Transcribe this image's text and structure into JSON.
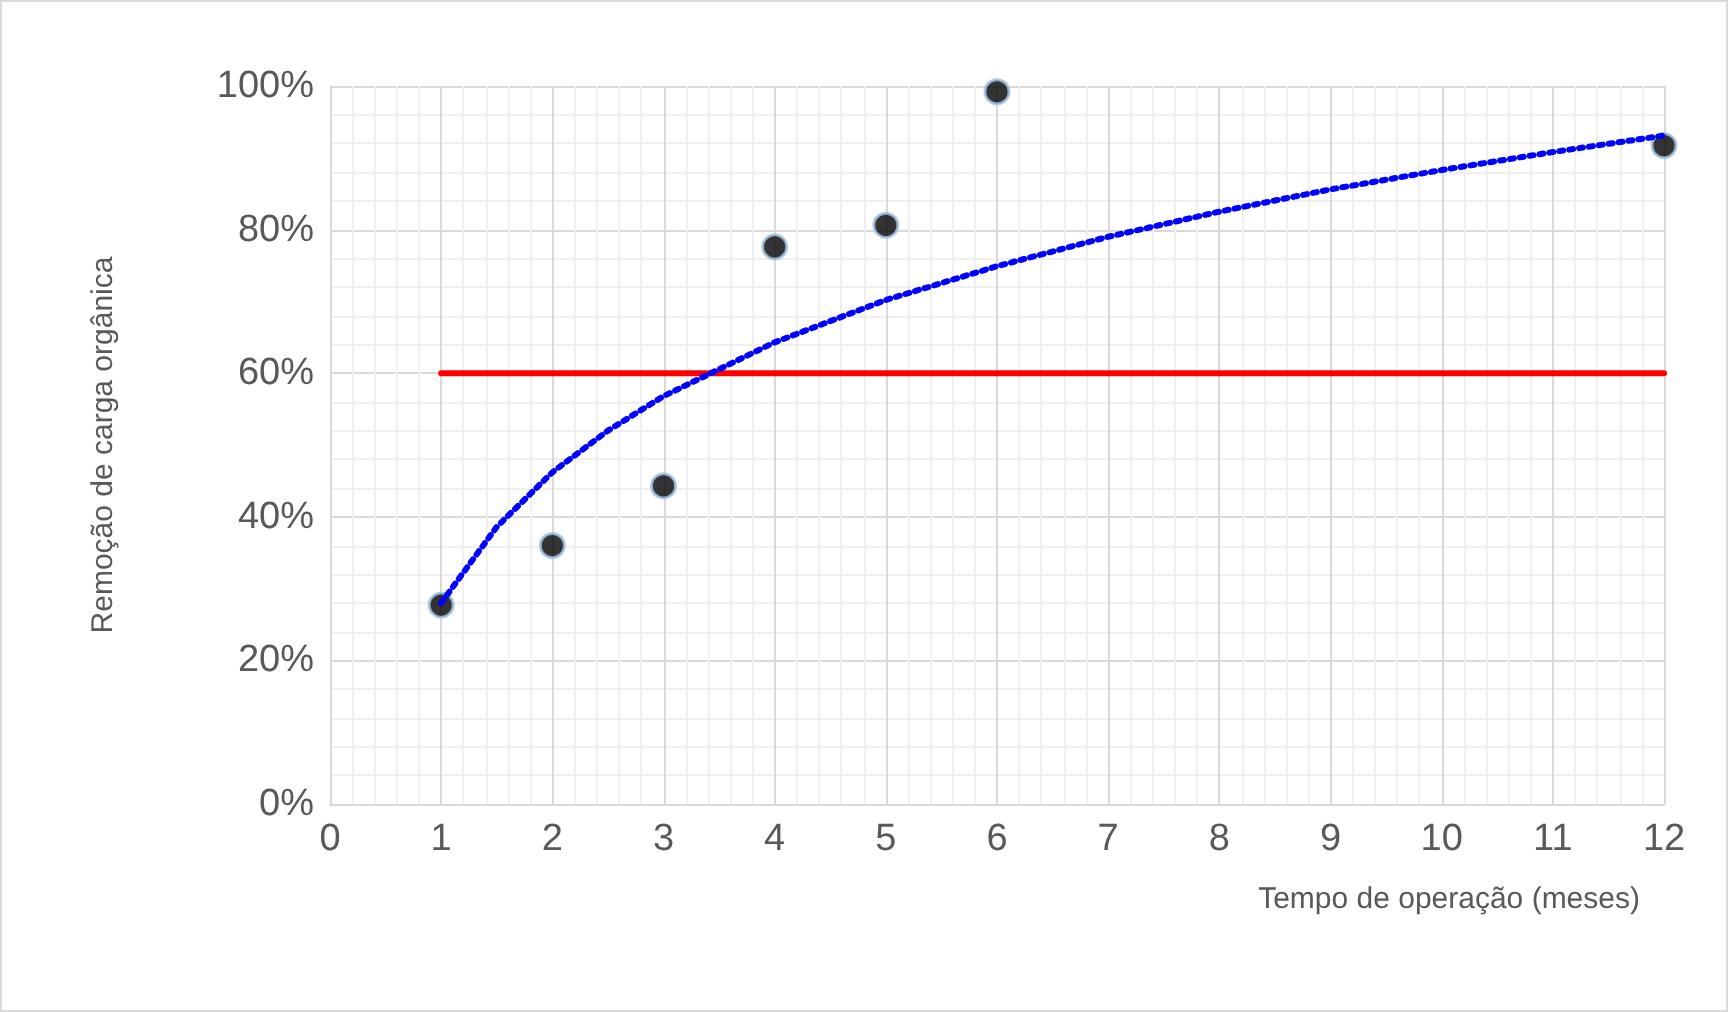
{
  "chart_data": {
    "type": "scatter",
    "xlabel": "Tempo de operação (meses)",
    "ylabel": "Remoção de carga orgânica",
    "xlim": [
      0,
      12
    ],
    "xticks": [
      0,
      1,
      2,
      3,
      4,
      5,
      6,
      7,
      8,
      9,
      10,
      11,
      12
    ],
    "ylim": [
      0,
      100
    ],
    "yticks": [
      {
        "value": 0,
        "label": "0%"
      },
      {
        "value": 20,
        "label": "20%"
      },
      {
        "value": 40,
        "label": "40%"
      },
      {
        "value": 60,
        "label": "60%"
      },
      {
        "value": 80,
        "label": "80%"
      },
      {
        "value": 100,
        "label": "100%"
      }
    ],
    "grid": true,
    "marker": "circle",
    "series": [
      {
        "type": "line",
        "color": "#ff0000",
        "line_style": "solid",
        "marker": "none",
        "x": [
          1,
          12
        ],
        "values": [
          60,
          60
        ]
      },
      {
        "type": "line",
        "color": "#0000ff",
        "line_style": "dotted",
        "marker": "none",
        "x": [
          1,
          1.5,
          2,
          2.5,
          3,
          4,
          5,
          6,
          7,
          8,
          9,
          10,
          11,
          12
        ],
        "values": [
          28,
          38.6,
          46.2,
          52,
          56.8,
          64.3,
          70.2,
          74.9,
          79,
          82.5,
          85.6,
          88.3,
          90.8,
          93.1
        ]
      },
      {
        "color": "#000000",
        "x": [
          1,
          2,
          3,
          4,
          5,
          6,
          12
        ],
        "values": [
          27.7,
          36,
          44.3,
          77.6,
          80.6,
          99.2,
          91.7
        ]
      }
    ]
  }
}
